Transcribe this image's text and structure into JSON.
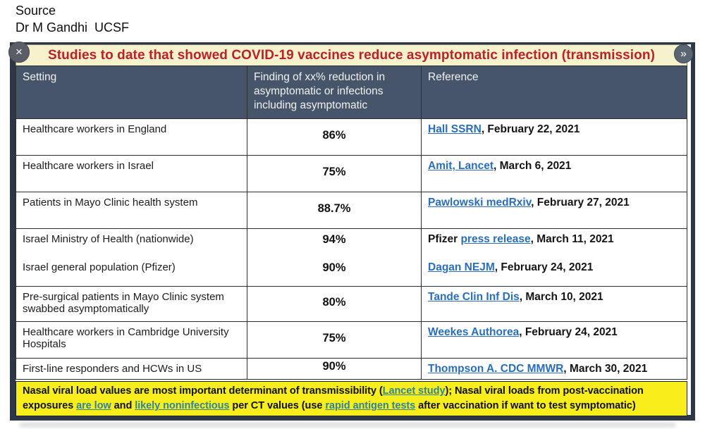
{
  "source": {
    "line1": "Source",
    "line2": "Dr M Gandhi  UCSF"
  },
  "panel": {
    "title": "Studies to date that showed COVID-19 vaccines reduce asymptomatic infection (transmission)",
    "close_icon": "×",
    "next_icon": "»"
  },
  "table": {
    "headers": [
      "Setting",
      "Finding of xx% reduction in asymptomatic or infections including asymptomatic",
      "Reference"
    ],
    "rows": [
      {
        "setting": "Healthcare workers in England",
        "finding": "86%",
        "ref_prefix": "",
        "ref_link": "Hall SSRN",
        "ref_rest": ", February 22, 2021"
      },
      {
        "setting": "Healthcare workers in Israel",
        "finding": "75%",
        "ref_prefix": "",
        "ref_link": "Amit, Lancet",
        "ref_rest": ", March 6, 2021"
      },
      {
        "setting": "Patients in Mayo Clinic health system",
        "finding": "88.7%",
        "ref_prefix": "",
        "ref_link": "Pawlowski medRxiv",
        "ref_rest": ", February 27, 2021"
      },
      {
        "setting": "Israel Ministry of Health (nationwide)",
        "finding": "94%",
        "ref_prefix": "Pfizer ",
        "ref_link": "press release",
        "ref_rest": ", March 11, 2021"
      },
      {
        "setting": "Israel general population (Pfizer)",
        "finding": "90%",
        "ref_prefix": "",
        "ref_link": "Dagan NEJM",
        "ref_rest": ", February 24, 2021"
      },
      {
        "setting": "Pre-surgical patients in Mayo Clinic system swabbed asymptomatically",
        "finding": "80%",
        "ref_prefix": "",
        "ref_link": "Tande Clin Inf Dis",
        "ref_rest": ", March 10, 2021"
      },
      {
        "setting": "Healthcare workers in Cambridge University Hospitals",
        "finding": "75%",
        "ref_prefix": "",
        "ref_link": "Weekes Authorea",
        "ref_rest": ", February 24, 2021"
      },
      {
        "setting": "First-line responders and HCWs in US",
        "finding": "90%",
        "ref_prefix": "",
        "ref_link": "Thompson A. CDC MMWR",
        "ref_rest": ", March 30, 2021"
      }
    ]
  },
  "footer": {
    "segments": [
      {
        "type": "text",
        "text": "Nasal viral load values are most important determinant of transmissibility ("
      },
      {
        "type": "link",
        "text": "Lancet study"
      },
      {
        "type": "text",
        "text": "); Nasal viral loads from post-vaccination exposures "
      },
      {
        "type": "link",
        "text": "are low"
      },
      {
        "type": "text",
        "text": " and "
      },
      {
        "type": "link",
        "text": "likely noninfectious"
      },
      {
        "type": "text",
        "text": " per CT values (use "
      },
      {
        "type": "link",
        "text": "rapid antigen tests"
      },
      {
        "type": "text",
        "text": " after vaccination if want to test symptomatic)"
      }
    ]
  },
  "colors": {
    "title_red": "#bd2025",
    "title_bar_bg": "#f6f2ce",
    "header_bg": "#465569",
    "frame_border": "#2c3848",
    "footer_yellow": "#f8ee1b",
    "link_blue": "#2a6ebb",
    "link_teal": "#2f839c"
  }
}
